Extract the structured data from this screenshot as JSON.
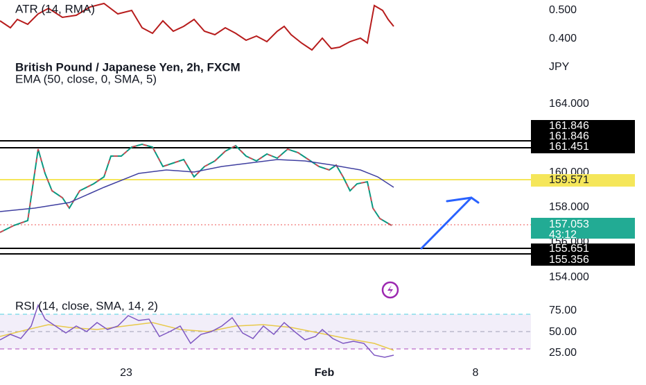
{
  "atr_pane": {
    "title": "ATR (14, RMA)",
    "axis_labels": [
      "0.500",
      "0.400"
    ]
  },
  "main_pane": {
    "title": "British Pound / Japanese Yen, 2h, FXCM",
    "indicator": "EMA (50, close, 0, SMA, 5)",
    "currency": "JPY",
    "axis_labels": [
      "164.000",
      "160.000",
      "158.000",
      "156.000",
      "154.000"
    ],
    "price_tags": [
      "161.846",
      "161.846",
      "161.451",
      "159.571",
      "157.053",
      "43:12",
      "155.651",
      "155.356"
    ]
  },
  "rsi_pane": {
    "title": "RSI (14, close, SMA, 14, 2)",
    "axis_labels": [
      "75.00",
      "50.00",
      "25.00"
    ]
  },
  "time_axis": [
    "23",
    "Feb",
    "8"
  ]
}
